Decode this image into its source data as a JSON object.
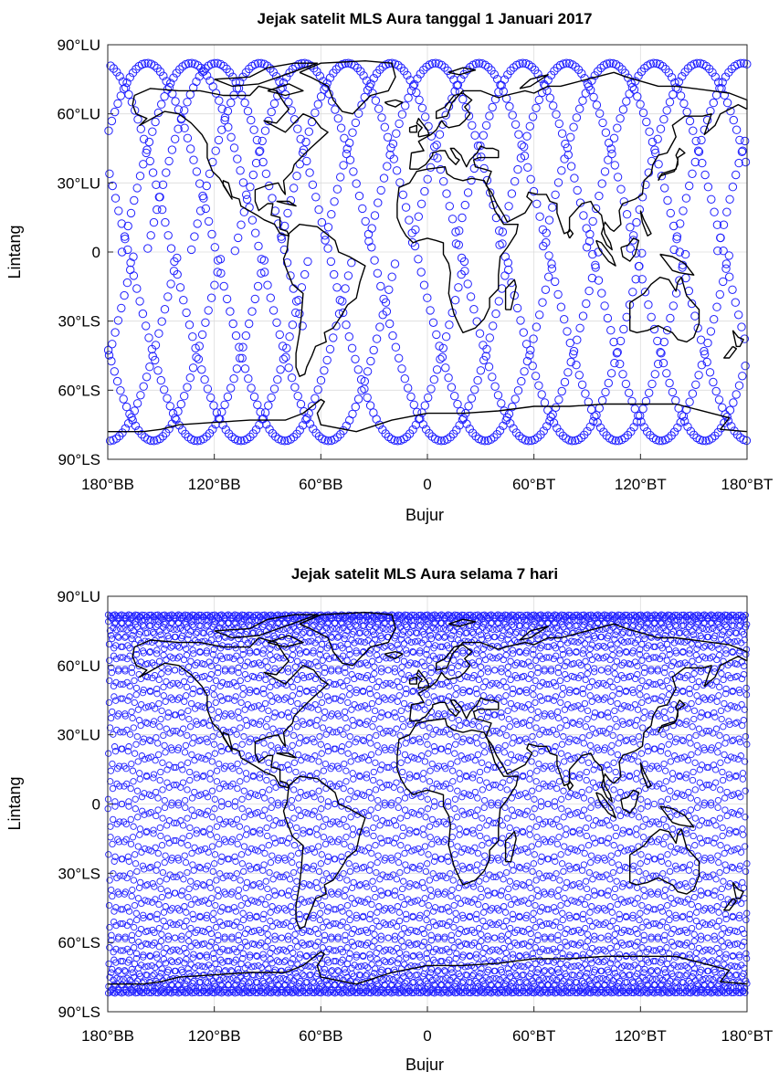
{
  "colors": {
    "track": "#2020ff",
    "coast": "#000000"
  },
  "maps": [
    {
      "title": "Jejak satelit MLS Aura tanggal 1 Januari 2017",
      "xlabel": "Bujur",
      "ylabel": "Lintang",
      "xticks": [
        "180°BB",
        "120°BB",
        "60°BB",
        "0",
        "60°BT",
        "120°BT",
        "180°BT"
      ],
      "yticks": [
        "90°LU",
        "60°LU",
        "30°LU",
        "0",
        "30°LS",
        "60°LS",
        "90°LS"
      ],
      "lon_range": [
        -180,
        180
      ],
      "lat_range": [
        -90,
        90
      ],
      "orbit_lat_limit": 82,
      "days": 1,
      "orbits_per_day": 14.57
    },
    {
      "title": "Jejak satelit MLS Aura selama 7 hari",
      "xlabel": "Bujur",
      "ylabel": "Lintang",
      "xticks": [
        "180°BB",
        "120°BB",
        "60°BB",
        "0",
        "60°BT",
        "120°BT",
        "180°BT"
      ],
      "yticks": [
        "90°LU",
        "60°LU",
        "30°LU",
        "0",
        "30°LS",
        "60°LS",
        "90°LS"
      ],
      "lon_range": [
        -180,
        180
      ],
      "lat_range": [
        -90,
        90
      ],
      "orbit_lat_limit": 82,
      "days": 7,
      "orbits_per_day": 14.57
    }
  ]
}
